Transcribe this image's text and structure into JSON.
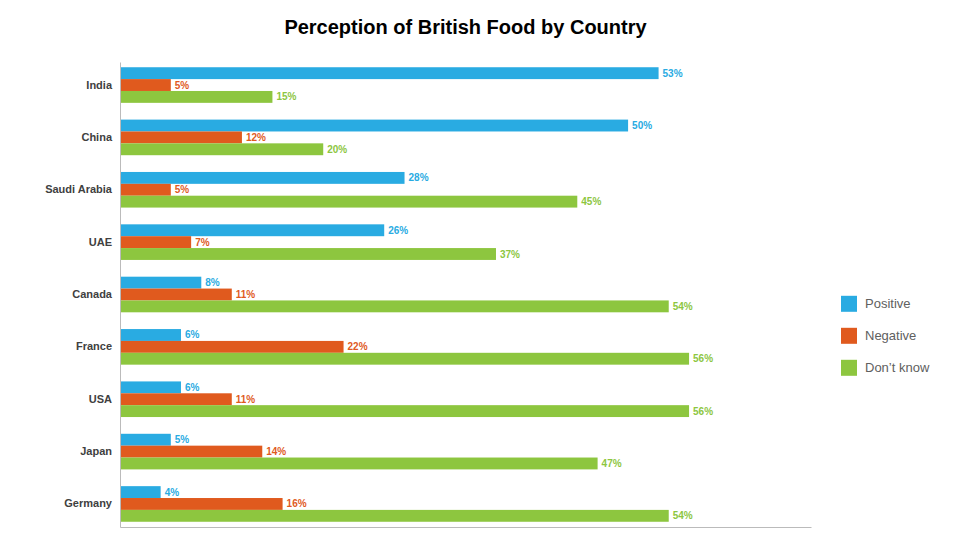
{
  "chart_data": {
    "type": "bar",
    "orientation": "horizontal",
    "title": "Perception of British Food by Country",
    "categories": [
      "India",
      "China",
      "Saudi Arabia",
      "UAE",
      "Canada",
      "France",
      "USA",
      "Japan",
      "Germany"
    ],
    "series": [
      {
        "name": "Positive",
        "color": "#29ABE2",
        "values": [
          53,
          50,
          28,
          26,
          8,
          6,
          6,
          5,
          4
        ],
        "value_labels": [
          "53%",
          "50%",
          "28%",
          "26%",
          "8%",
          "6%",
          "6%",
          "5%",
          "4%"
        ]
      },
      {
        "name": "Negative",
        "color": "#E05A1E",
        "values": [
          5,
          12,
          5,
          7,
          11,
          22,
          11,
          14,
          16
        ],
        "value_labels": [
          "5%",
          "12%",
          "5%",
          "7%",
          "11%",
          "22%",
          "11%",
          "14%",
          "16%"
        ]
      },
      {
        "name": "Don’t know",
        "color": "#8DC63F",
        "values": [
          15,
          20,
          45,
          37,
          54,
          56,
          56,
          47,
          54
        ],
        "value_labels": [
          "15%",
          "20%",
          "45%",
          "37%",
          "54%",
          "56%",
          "56%",
          "47%",
          "54%"
        ]
      }
    ],
    "xlim": [
      0,
      68
    ],
    "data_labels": true,
    "tick_labels": "y",
    "grid": false,
    "legend": "right"
  }
}
